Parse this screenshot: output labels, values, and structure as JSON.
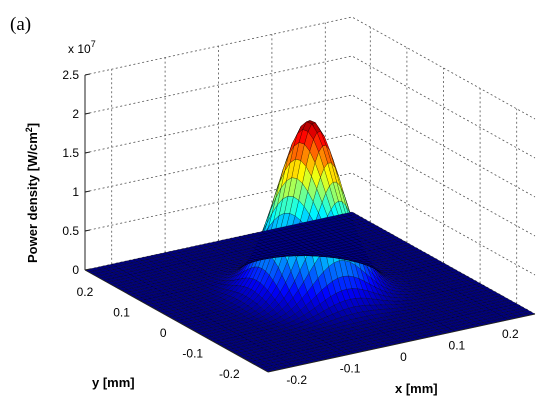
{
  "chart_data": {
    "type": "surface",
    "panel_label": "(a)",
    "title": "",
    "z_exponent_label": "x 10",
    "z_exponent_power": "7",
    "xlabel": "x [mm]",
    "ylabel": "y [mm]",
    "zlabel_main": "Power density [W/cm",
    "zlabel_sup": "2",
    "zlabel_end": "]",
    "x_ticks": [
      -0.2,
      -0.1,
      0,
      0.1,
      0.2
    ],
    "x_tick_labels": [
      "-0.2",
      "-0.1",
      "0",
      "0.1",
      "0.2"
    ],
    "y_ticks": [
      -0.2,
      -0.1,
      0,
      0.1,
      0.2
    ],
    "y_tick_labels": [
      "-0.2",
      "-0.1",
      "0",
      "0.1",
      "0.2"
    ],
    "z_ticks": [
      0,
      0.5,
      1,
      1.5,
      2,
      2.5
    ],
    "z_tick_labels": [
      "0",
      "0.5",
      "1",
      "1.5",
      "2",
      "2.5"
    ],
    "xlim": [
      -0.25,
      0.25
    ],
    "ylim": [
      -0.25,
      0.25
    ],
    "zlim": [
      0,
      2.5
    ],
    "z_scale": 10000000,
    "peak_power_density": 2.2,
    "peak_position": [
      0,
      0
    ],
    "beam_sigma_mm": 0.05,
    "grid": true,
    "colormap": "jet",
    "mesh_color": "#000000"
  }
}
